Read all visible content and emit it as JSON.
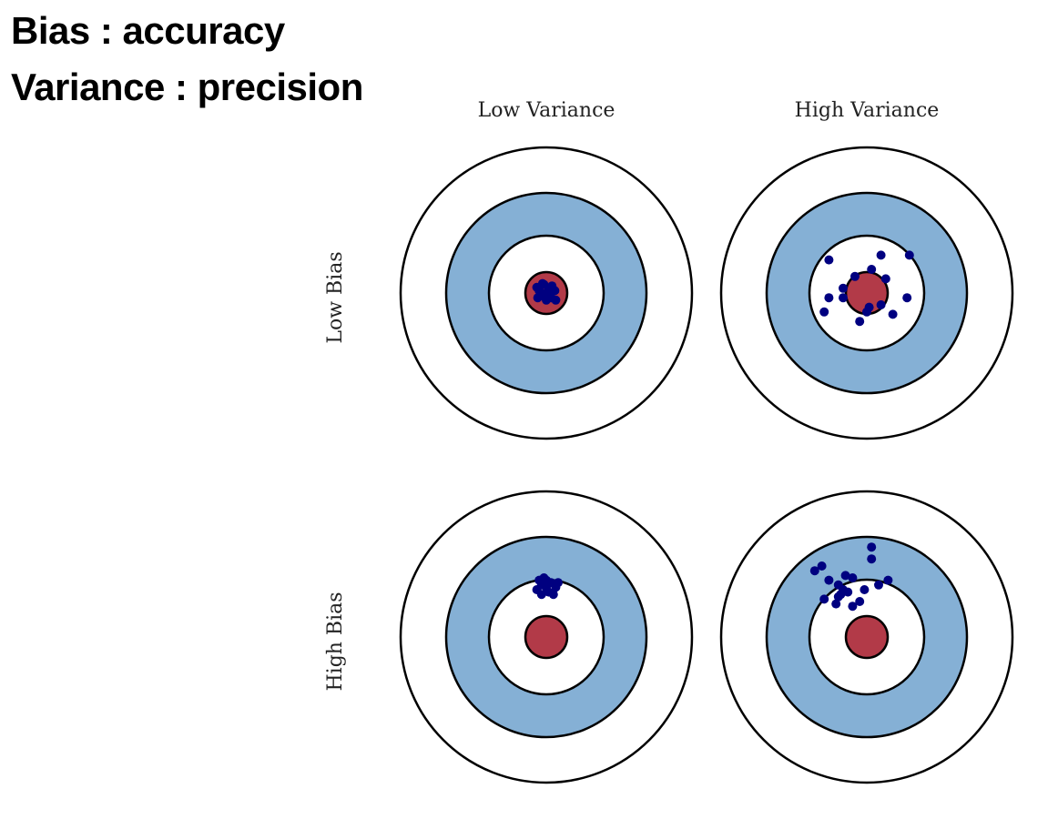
{
  "heading": {
    "line1": "Bias : accuracy",
    "line2": "Variance : precision"
  },
  "diagram": {
    "column_labels": [
      "Low Variance",
      "High Variance"
    ],
    "row_labels": [
      "Low Bias",
      "High Bias"
    ],
    "colors": {
      "ring_blue": "#85b0d5",
      "bullseye_red": "#b23a48",
      "dot_navy": "#000080",
      "outline": "#000000"
    },
    "targets": [
      {
        "name": "low-bias-low-variance",
        "hits": [
          [
            0.05,
            0.1
          ],
          [
            -0.15,
            0.05
          ],
          [
            0.1,
            -0.1
          ],
          [
            -0.1,
            -0.05
          ],
          [
            0.18,
            0.05
          ],
          [
            -0.05,
            0.18
          ],
          [
            0.0,
            -0.15
          ],
          [
            0.12,
            0.15
          ],
          [
            -0.18,
            -0.1
          ],
          [
            0.05,
            -0.05
          ],
          [
            -0.2,
            0.12
          ],
          [
            0.2,
            -0.15
          ],
          [
            0.0,
            0.0
          ],
          [
            -0.08,
            0.2
          ]
        ]
      },
      {
        "name": "low-bias-high-variance",
        "hits": [
          [
            0.9,
            0.8
          ],
          [
            -0.9,
            -0.4
          ],
          [
            0.3,
            0.8
          ],
          [
            -0.8,
            0.7
          ],
          [
            0.85,
            -0.1
          ],
          [
            -0.5,
            0.1
          ],
          [
            0.55,
            -0.45
          ],
          [
            -0.8,
            -0.1
          ],
          [
            0.0,
            -0.4
          ],
          [
            -0.25,
            0.35
          ],
          [
            0.3,
            -0.25
          ],
          [
            -0.15,
            -0.6
          ],
          [
            0.05,
            -0.3
          ],
          [
            -0.5,
            -0.1
          ],
          [
            0.1,
            0.5
          ],
          [
            0.4,
            0.3
          ]
        ]
      },
      {
        "name": "high-bias-low-variance",
        "hits": [
          [
            0.0,
            1.2
          ],
          [
            -0.1,
            1.1
          ],
          [
            0.1,
            1.15
          ],
          [
            -0.2,
            1.0
          ],
          [
            0.2,
            1.05
          ],
          [
            0.05,
            0.95
          ],
          [
            -0.05,
            1.25
          ],
          [
            0.15,
            0.9
          ],
          [
            -0.15,
            1.2
          ],
          [
            0.25,
            1.15
          ],
          [
            0.0,
            1.05
          ],
          [
            -0.1,
            0.9
          ]
        ]
      },
      {
        "name": "high-bias-high-variance",
        "hits": [
          [
            -0.6,
            1.1
          ],
          [
            -0.8,
            1.2
          ],
          [
            -1.1,
            1.4
          ],
          [
            -0.95,
            1.5
          ],
          [
            0.1,
            1.9
          ],
          [
            0.1,
            1.65
          ],
          [
            -0.5,
            1.0
          ],
          [
            -0.3,
            1.25
          ],
          [
            -0.45,
            1.3
          ],
          [
            0.25,
            1.1
          ],
          [
            0.45,
            1.2
          ],
          [
            -0.4,
            0.95
          ],
          [
            -0.55,
            0.9
          ],
          [
            -0.65,
            0.7
          ],
          [
            -0.9,
            0.8
          ],
          [
            -0.15,
            0.75
          ],
          [
            -0.3,
            0.65
          ],
          [
            -0.6,
            0.85
          ],
          [
            -0.05,
            1.0
          ]
        ]
      }
    ]
  }
}
